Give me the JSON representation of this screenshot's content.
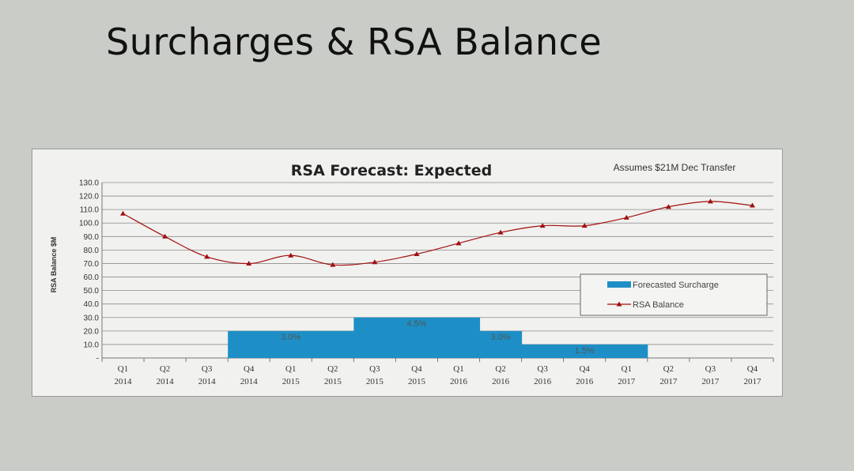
{
  "slide": {
    "title": "Surcharges & RSA Balance"
  },
  "chart_data": {
    "type": "bar",
    "title": "RSA Forecast: Expected",
    "annotation": "Assumes $21M Dec Transfer",
    "ylabel": "RSA Balance $M",
    "xlabel": "",
    "ylim": [
      0,
      130
    ],
    "yticks": [
      "130.0",
      "120.0",
      "110.0",
      "100.0",
      "90.0",
      "80.0",
      "70.0",
      "60.0",
      "50.0",
      "40.0",
      "30.0",
      "20.0",
      "10.0",
      "-"
    ],
    "categories": [
      [
        "Q1",
        "2014"
      ],
      [
        "Q2",
        "2014"
      ],
      [
        "Q3",
        "2014"
      ],
      [
        "Q4",
        "2014"
      ],
      [
        "Q1",
        "2015"
      ],
      [
        "Q2",
        "2015"
      ],
      [
        "Q3",
        "2015"
      ],
      [
        "Q4",
        "2015"
      ],
      [
        "Q1",
        "2016"
      ],
      [
        "Q2",
        "2016"
      ],
      [
        "Q3",
        "2016"
      ],
      [
        "Q4",
        "2016"
      ],
      [
        "Q1",
        "2017"
      ],
      [
        "Q2",
        "2017"
      ],
      [
        "Q3",
        "2017"
      ],
      [
        "Q4",
        "2017"
      ]
    ],
    "grid": true,
    "legend_position": "right",
    "series": [
      {
        "name": "Forecasted Surcharge",
        "kind": "bar",
        "color": "#1d8fc6",
        "values": [
          0,
          0,
          0,
          20,
          20,
          20,
          30,
          30,
          30,
          20,
          10,
          10,
          10,
          0,
          0,
          0
        ],
        "labels": [
          {
            "text": "3.0%",
            "from": 3,
            "to": 5
          },
          {
            "text": "4.5%",
            "from": 6,
            "to": 8
          },
          {
            "text": "3.0%",
            "from": 9,
            "to": 9
          },
          {
            "text": "1.5%",
            "from": 10,
            "to": 12
          }
        ]
      },
      {
        "name": "RSA Balance",
        "kind": "line",
        "color": "#a01010",
        "values": [
          107,
          90,
          75,
          70,
          76,
          69,
          71,
          77,
          85,
          93,
          98,
          98,
          104,
          112,
          116,
          113
        ]
      }
    ]
  }
}
